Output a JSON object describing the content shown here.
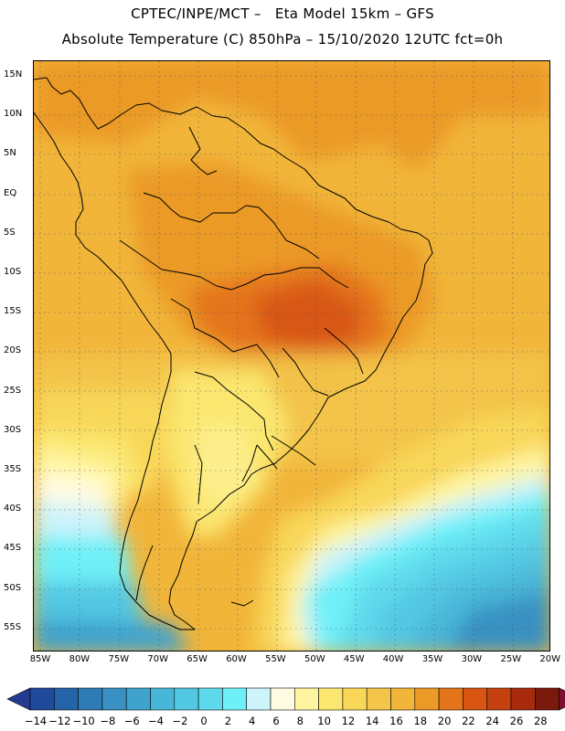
{
  "header": {
    "title_line1": "CPTEC/INPE/MCT –   Eta Model 15km – GFS",
    "title_line2": "Absolute Temperature (C) 850hPa – 15/10/2020 12UTC fct=0h"
  },
  "axes": {
    "lat_labels": [
      "15N",
      "10N",
      "5N",
      "EQ",
      "5S",
      "10S",
      "15S",
      "20S",
      "25S",
      "30S",
      "35S",
      "40S",
      "45S",
      "50S",
      "55S"
    ],
    "lon_labels": [
      "85W",
      "80W",
      "75W",
      "70W",
      "65W",
      "60W",
      "55W",
      "50W",
      "45W",
      "40W",
      "35W",
      "30W",
      "25W",
      "20W"
    ]
  },
  "colorbar": {
    "labels": [
      "-14",
      "-12",
      "-10",
      "-8",
      "-6",
      "-4",
      "-2",
      "0",
      "2",
      "4",
      "6",
      "8",
      "10",
      "12",
      "14",
      "16",
      "18",
      "20",
      "22",
      "24",
      "26",
      "28"
    ],
    "colors": [
      "#1f4a9a",
      "#2563a8",
      "#2e7bb6",
      "#3891c2",
      "#3fa3cd",
      "#48b6d8",
      "#52c8e3",
      "#5ed9ec",
      "#6ff0f8",
      "#cdf3fb",
      "#fffbe2",
      "#fff5a0",
      "#fbe770",
      "#f8d758",
      "#f3c54a",
      "#f1b53a",
      "#eb9a27",
      "#e4741a",
      "#d85612",
      "#c4400f",
      "#a82a0c",
      "#7a1a0c"
    ],
    "under_color": "#233c8f",
    "over_color": "#7a1030"
  }
}
